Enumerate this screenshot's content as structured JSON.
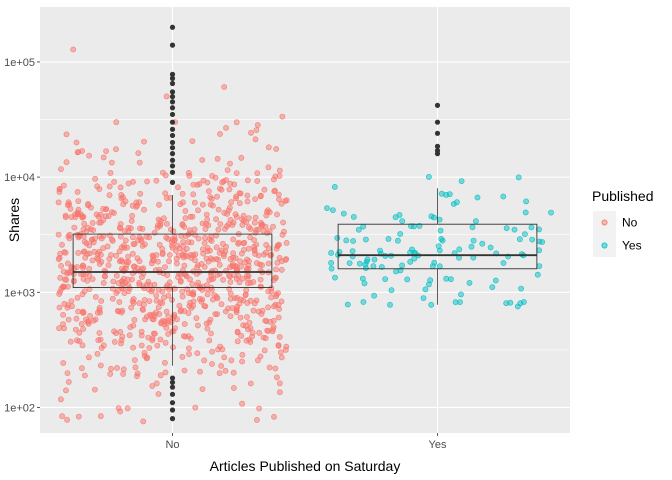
{
  "chart_data": {
    "type": "boxplot",
    "xlabel": "Articles Published on Saturday",
    "ylabel": "Shares",
    "y_scale": "log10",
    "ylim": [
      60,
      300000
    ],
    "y_ticks": [
      100,
      1000,
      10000,
      100000
    ],
    "y_tick_labels": [
      "1e+02",
      "1e+03",
      "1e+04",
      "1e+05"
    ],
    "categories": [
      "No",
      "Yes"
    ],
    "legend": {
      "title": "Published",
      "position": "right",
      "entries": [
        {
          "label": "No",
          "color": "#F8766D"
        },
        {
          "label": "Yes",
          "color": "#00BFC4"
        }
      ]
    },
    "grid": true,
    "background": "#EBEBEB",
    "boxes": [
      {
        "category": "No",
        "q1": 1100,
        "median": 1500,
        "q3": 3200,
        "whisker_low": 230,
        "whisker_high": 7000,
        "outliers": [
          80,
          95,
          110,
          130,
          150,
          165,
          180,
          9000,
          11000,
          12500,
          14000,
          16000,
          18000,
          20000,
          23000,
          26000,
          30000,
          35000,
          40000,
          45000,
          50000,
          55000,
          65000,
          72000,
          78000,
          140000,
          200000
        ]
      },
      {
        "category": "Yes",
        "q1": 1600,
        "median": 2100,
        "q3": 3900,
        "whisker_low": 780,
        "whisker_high": 8000,
        "outliers": [
          16000,
          17000,
          18500,
          24000,
          30000,
          42000
        ]
      }
    ],
    "points": {
      "No": {
        "count": 950,
        "median": 1600,
        "spread_log10": 0.5,
        "min": 75,
        "max": 200000,
        "color": "#F8766D"
      },
      "Yes": {
        "count": 130,
        "median": 2200,
        "spread_log10": 0.28,
        "min": 750,
        "max": 42000,
        "color": "#00BFC4"
      }
    }
  }
}
